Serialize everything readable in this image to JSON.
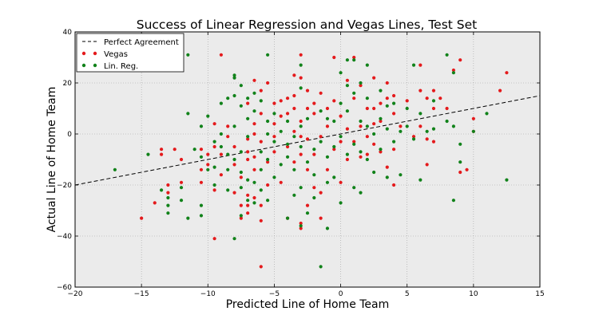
{
  "chart_data": {
    "type": "scatter",
    "title": "Success of Linear Regression and Vegas Lines, Test Set",
    "xlabel": "Predicted Line of Home Team",
    "ylabel": "Actual Line of Home Team",
    "xlim": [
      -20,
      15
    ],
    "ylim": [
      -60,
      40
    ],
    "x_ticks": [
      -20,
      -15,
      -10,
      -5,
      0,
      5,
      10,
      15
    ],
    "y_ticks": [
      -60,
      -40,
      -20,
      0,
      20,
      40
    ],
    "grid": true,
    "legend_position": "top-left",
    "background_color": "#ebebeb",
    "series": [
      {
        "name": "Perfect Agreement",
        "kind": "line",
        "style": "dashed",
        "color": "#000000",
        "x": [
          -20,
          15
        ],
        "y": [
          -20,
          15
        ]
      },
      {
        "name": "Vegas",
        "kind": "scatter",
        "color": "#e41a1c",
        "points": [
          [
            -15,
            -33
          ],
          [
            -14,
            -27
          ],
          [
            -13.5,
            -6
          ],
          [
            -13.5,
            -8
          ],
          [
            -13,
            -20
          ],
          [
            -13,
            -23
          ],
          [
            -12.5,
            -6
          ],
          [
            -12,
            -10
          ],
          [
            -12,
            -19
          ],
          [
            -10.5,
            -6
          ],
          [
            -10.5,
            -14
          ],
          [
            -10.5,
            -19
          ],
          [
            -10,
            -8
          ],
          [
            -10,
            -12
          ],
          [
            -9.5,
            -41
          ],
          [
            -9.5,
            -22
          ],
          [
            -9.5,
            4
          ],
          [
            -9.5,
            -5
          ],
          [
            -9,
            31
          ],
          [
            -9,
            -8
          ],
          [
            -9,
            -16
          ],
          [
            -8.5,
            -1
          ],
          [
            -8.5,
            3
          ],
          [
            -8,
            -5
          ],
          [
            -8,
            -12
          ],
          [
            -8,
            -23
          ],
          [
            -7.5,
            -28
          ],
          [
            -7.5,
            -33
          ],
          [
            -7.5,
            -17
          ],
          [
            -7,
            -10
          ],
          [
            -7,
            12
          ],
          [
            -7,
            -2
          ],
          [
            -7,
            -7
          ],
          [
            -7,
            -24
          ],
          [
            -7,
            -28
          ],
          [
            -7,
            -31
          ],
          [
            -6.5,
            -14
          ],
          [
            -6.5,
            -25
          ],
          [
            -6.5,
            21
          ],
          [
            -6.5,
            4
          ],
          [
            -6.5,
            0
          ],
          [
            -6.5,
            -9
          ],
          [
            -6,
            -52
          ],
          [
            -6,
            -28
          ],
          [
            -6,
            -34
          ],
          [
            -6,
            17
          ],
          [
            -6,
            8
          ],
          [
            -6,
            -3
          ],
          [
            -5.5,
            20
          ],
          [
            -5.5,
            -20
          ],
          [
            -5.5,
            -11
          ],
          [
            -5,
            -7
          ],
          [
            -5,
            12
          ],
          [
            -5,
            4
          ],
          [
            -5,
            -1
          ],
          [
            -4.5,
            -19
          ],
          [
            -4.5,
            7
          ],
          [
            -4.5,
            13
          ],
          [
            -4,
            -33
          ],
          [
            -4,
            14
          ],
          [
            -4,
            8
          ],
          [
            -4,
            -5
          ],
          [
            -3.5,
            23
          ],
          [
            -3.5,
            15
          ],
          [
            -3.5,
            10
          ],
          [
            -3.5,
            1
          ],
          [
            -3.5,
            -11
          ],
          [
            -3,
            -37
          ],
          [
            -3,
            -35
          ],
          [
            -3,
            31
          ],
          [
            -3,
            22
          ],
          [
            -3,
            5
          ],
          [
            -3,
            -1
          ],
          [
            -3,
            -8
          ],
          [
            -2.5,
            17
          ],
          [
            -2.5,
            10
          ],
          [
            -2.5,
            -2
          ],
          [
            -2.5,
            -14
          ],
          [
            -2.5,
            -28
          ],
          [
            -2,
            -21
          ],
          [
            -2,
            -8
          ],
          [
            -2,
            8
          ],
          [
            -2,
            12
          ],
          [
            -1.5,
            16
          ],
          [
            -1.5,
            -1
          ],
          [
            -1.5,
            -23
          ],
          [
            -1.5,
            -33
          ],
          [
            -1,
            -14
          ],
          [
            -1,
            3
          ],
          [
            -1,
            10
          ],
          [
            -0.5,
            30
          ],
          [
            -0.5,
            13
          ],
          [
            -0.5,
            -6
          ],
          [
            0,
            -3
          ],
          [
            0,
            -19
          ],
          [
            0,
            7
          ],
          [
            0.5,
            2
          ],
          [
            0.5,
            -10
          ],
          [
            0.5,
            21
          ],
          [
            1,
            30
          ],
          [
            1,
            -3
          ],
          [
            1,
            14
          ],
          [
            1.5,
            -9
          ],
          [
            1.5,
            19
          ],
          [
            1.5,
            3
          ],
          [
            2,
            -8
          ],
          [
            2,
            10
          ],
          [
            2,
            -1
          ],
          [
            2.5,
            4
          ],
          [
            2.5,
            10
          ],
          [
            2.5,
            22
          ],
          [
            2.5,
            -4
          ],
          [
            3,
            12
          ],
          [
            3,
            -7
          ],
          [
            3,
            5
          ],
          [
            3.5,
            20
          ],
          [
            3.5,
            14
          ],
          [
            3.5,
            -13
          ],
          [
            4,
            15
          ],
          [
            4,
            -6
          ],
          [
            4,
            -20
          ],
          [
            4,
            8
          ],
          [
            4.5,
            3
          ],
          [
            5,
            13
          ],
          [
            5.5,
            -1
          ],
          [
            6,
            27
          ],
          [
            6,
            17
          ],
          [
            6,
            3
          ],
          [
            6.5,
            14
          ],
          [
            6.5,
            -2
          ],
          [
            6.5,
            -12
          ],
          [
            7,
            17
          ],
          [
            7,
            10
          ],
          [
            7,
            -3
          ],
          [
            7.5,
            14
          ],
          [
            8,
            10
          ],
          [
            8.5,
            25
          ],
          [
            9,
            29
          ],
          [
            9,
            -15
          ],
          [
            9.5,
            -14
          ],
          [
            10,
            6
          ],
          [
            10,
            1
          ],
          [
            12,
            17
          ],
          [
            12.5,
            24
          ]
        ]
      },
      {
        "name": "Lin. Reg.",
        "kind": "scatter",
        "color": "#11821a",
        "points": [
          [
            -17,
            -14
          ],
          [
            -14.5,
            -8
          ],
          [
            -13.5,
            -22
          ],
          [
            -13,
            -25
          ],
          [
            -13,
            -28
          ],
          [
            -13,
            -31
          ],
          [
            -12,
            -21
          ],
          [
            -12,
            -26
          ],
          [
            -11.5,
            -33
          ],
          [
            -11.5,
            31
          ],
          [
            -11.5,
            8
          ],
          [
            -11,
            -6
          ],
          [
            -10.5,
            -32
          ],
          [
            -10.5,
            -28
          ],
          [
            -10.5,
            -9
          ],
          [
            -10.5,
            3
          ],
          [
            -10,
            -14
          ],
          [
            -10,
            7
          ],
          [
            -9.5,
            -13
          ],
          [
            -9.5,
            -20
          ],
          [
            -9.5,
            -3
          ],
          [
            -9,
            -5
          ],
          [
            -9,
            12
          ],
          [
            -9,
            0
          ],
          [
            -8.5,
            14
          ],
          [
            -8.5,
            -8
          ],
          [
            -8.5,
            -14
          ],
          [
            -8.5,
            -22
          ],
          [
            -8,
            -41
          ],
          [
            -8,
            22
          ],
          [
            -8,
            23
          ],
          [
            -8,
            15
          ],
          [
            -8,
            -10
          ],
          [
            -8,
            3
          ],
          [
            -7.5,
            -7
          ],
          [
            -7.5,
            -15
          ],
          [
            -7.5,
            -21
          ],
          [
            -7.5,
            -32
          ],
          [
            -7.5,
            19
          ],
          [
            -7.5,
            11
          ],
          [
            -7,
            14
          ],
          [
            -7,
            6
          ],
          [
            -7,
            -1
          ],
          [
            -7,
            -18
          ],
          [
            -7,
            -26
          ],
          [
            -6.5,
            16
          ],
          [
            -6.5,
            9
          ],
          [
            -6.5,
            -19
          ],
          [
            -6.5,
            -27
          ],
          [
            -6,
            13
          ],
          [
            -6,
            -7
          ],
          [
            -6,
            -14
          ],
          [
            -6,
            -22
          ],
          [
            -5.5,
            31
          ],
          [
            -5.5,
            5
          ],
          [
            -5.5,
            0
          ],
          [
            -5.5,
            -10
          ],
          [
            -5.5,
            -26
          ],
          [
            -5,
            8
          ],
          [
            -5,
            -3
          ],
          [
            -5,
            -17
          ],
          [
            -4.5,
            -12
          ],
          [
            -4.5,
            1
          ],
          [
            -4,
            -9
          ],
          [
            -4,
            -33
          ],
          [
            -4,
            5
          ],
          [
            -4,
            -4
          ],
          [
            -3.5,
            -24
          ],
          [
            -3.5,
            -14
          ],
          [
            -3.5,
            -1
          ],
          [
            -3,
            27
          ],
          [
            -3,
            18
          ],
          [
            -3,
            3
          ],
          [
            -3,
            -5
          ],
          [
            -3,
            -21
          ],
          [
            -3,
            -36
          ],
          [
            -2.5,
            6
          ],
          [
            -2.5,
            -11
          ],
          [
            -2.5,
            -31
          ],
          [
            -2,
            -6
          ],
          [
            -2,
            -16
          ],
          [
            -2,
            -25
          ],
          [
            -1.5,
            -52
          ],
          [
            -1.5,
            9
          ],
          [
            -1.5,
            -3
          ],
          [
            -1,
            -9
          ],
          [
            -1,
            -37
          ],
          [
            -1,
            -19
          ],
          [
            -1,
            6
          ],
          [
            -0.5,
            -17
          ],
          [
            -0.5,
            -5
          ],
          [
            -0.5,
            5
          ],
          [
            0,
            24
          ],
          [
            0,
            12
          ],
          [
            0,
            -1
          ],
          [
            0,
            -27
          ],
          [
            0.5,
            29
          ],
          [
            0.5,
            19
          ],
          [
            0.5,
            9
          ],
          [
            0.5,
            -8
          ],
          [
            1,
            29
          ],
          [
            1,
            16
          ],
          [
            1,
            -4
          ],
          [
            1,
            -21
          ],
          [
            1.5,
            -23
          ],
          [
            1.5,
            -7
          ],
          [
            1.5,
            5
          ],
          [
            1.5,
            20
          ],
          [
            2,
            27
          ],
          [
            2,
            14
          ],
          [
            2,
            3
          ],
          [
            2,
            -10
          ],
          [
            2.5,
            0
          ],
          [
            2.5,
            -15
          ],
          [
            3,
            -6
          ],
          [
            3,
            6
          ],
          [
            3,
            17
          ],
          [
            3.5,
            -17
          ],
          [
            3.5,
            2
          ],
          [
            3.5,
            11
          ],
          [
            4,
            -3
          ],
          [
            4,
            12
          ],
          [
            4.5,
            -16
          ],
          [
            4.5,
            1
          ],
          [
            5,
            3
          ],
          [
            5,
            10
          ],
          [
            5.5,
            -2
          ],
          [
            5.5,
            27
          ],
          [
            6,
            -18
          ],
          [
            6,
            8
          ],
          [
            6.5,
            1
          ],
          [
            7,
            13
          ],
          [
            7,
            2
          ],
          [
            8,
            31
          ],
          [
            8,
            5
          ],
          [
            8.5,
            24
          ],
          [
            8.5,
            -26
          ],
          [
            8.5,
            3
          ],
          [
            9,
            -4
          ],
          [
            9,
            -11
          ],
          [
            10,
            1
          ],
          [
            11,
            8
          ],
          [
            12.5,
            -18
          ]
        ]
      }
    ]
  }
}
